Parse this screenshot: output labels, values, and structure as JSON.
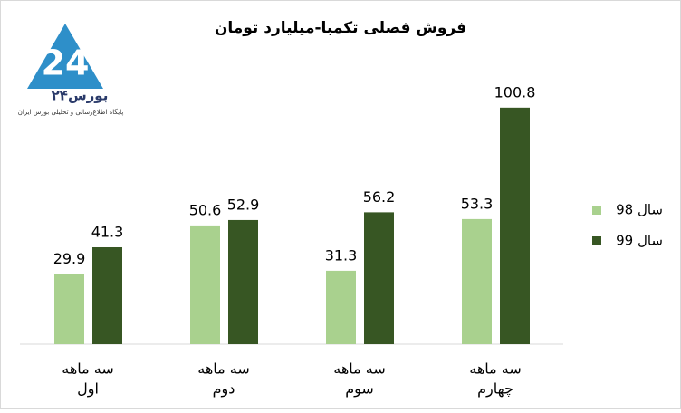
{
  "chart_data": {
    "type": "bar",
    "title": "فروش فصلی تکمبا-میلیارد تومان",
    "categories": [
      [
        "سه ماهه",
        "اول"
      ],
      [
        "سه ماهه",
        "دوم"
      ],
      [
        "سه ماهه",
        "سوم"
      ],
      [
        "سه ماهه",
        "چهارم"
      ]
    ],
    "series": [
      {
        "name": "سال 98",
        "color": "#a9d18e",
        "values": [
          29.9,
          50.6,
          31.3,
          53.3
        ]
      },
      {
        "name": "سال 99",
        "color": "#375623",
        "values": [
          41.3,
          52.9,
          56.2,
          100.8
        ]
      }
    ],
    "ylim": [
      0,
      110
    ],
    "grid": false,
    "legend": "right",
    "data_labels": true
  },
  "logo": {
    "name": "بورس۲۴",
    "tagline": "پایگاه اطلاع‌رسانی و تحلیلی بورس ایران"
  }
}
